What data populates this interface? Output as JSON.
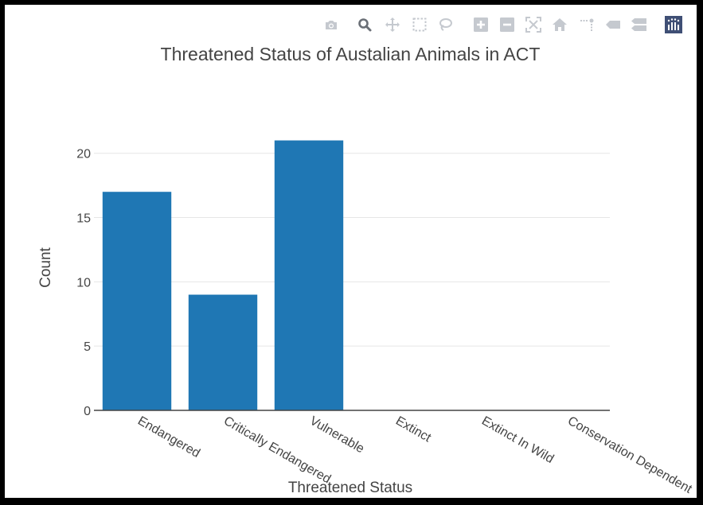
{
  "modebar": {
    "buttons": [
      {
        "name": "download-png-button",
        "icon": "camera-icon",
        "active": false
      },
      {
        "name": "zoom-button",
        "icon": "magnifier-icon",
        "active": true
      },
      {
        "name": "pan-button",
        "icon": "pan-arrows-icon",
        "active": false
      },
      {
        "name": "box-select-button",
        "icon": "box-select-icon",
        "active": false
      },
      {
        "name": "lasso-select-button",
        "icon": "lasso-icon",
        "active": false
      },
      {
        "name": "zoom-in-button",
        "icon": "plus-square-icon",
        "active": false
      },
      {
        "name": "zoom-out-button",
        "icon": "minus-square-icon",
        "active": false
      },
      {
        "name": "autoscale-button",
        "icon": "autoscale-icon",
        "active": false
      },
      {
        "name": "reset-axes-button",
        "icon": "home-icon",
        "active": false
      },
      {
        "name": "spike-lines-button",
        "icon": "spikelines-icon",
        "active": false
      },
      {
        "name": "hover-closest-button",
        "icon": "tag-icon",
        "active": false
      },
      {
        "name": "hover-compare-button",
        "icon": "tags-icon",
        "active": false
      },
      {
        "name": "plotly-logo-button",
        "icon": "plotly-logo-icon",
        "active": false
      }
    ],
    "icon_color": "#c5c9cf",
    "active_color": "#6b7077",
    "logo_color": "#3f4f75"
  },
  "chart_data": {
    "type": "bar",
    "title": "Threatened Status of Austalian Animals in ACT",
    "xlabel": "Threatened Status",
    "ylabel": "Count",
    "categories": [
      "Endangered",
      "Critically Endangered",
      "Vulnerable",
      "Extinct",
      "Extinct In Wild",
      "Conservation Dependent"
    ],
    "values": [
      17,
      9,
      21,
      0,
      0,
      0
    ],
    "ylim": [
      0,
      23.2
    ],
    "yticks": [
      0,
      5,
      10,
      15,
      20
    ],
    "grid": true,
    "bar_color": "#1f77b4"
  }
}
